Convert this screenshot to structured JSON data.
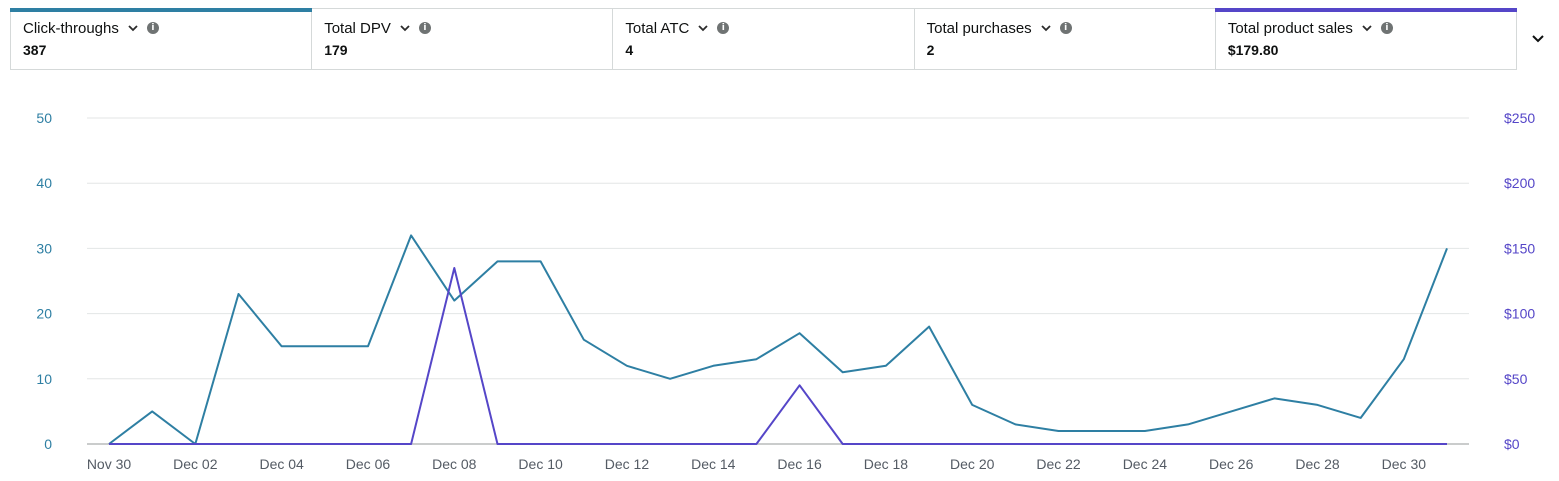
{
  "metrics": [
    {
      "label": "Click-throughs",
      "value": "387",
      "bar_color": "#2e7fa3"
    },
    {
      "label": "Total DPV",
      "value": "179",
      "bar_color": ""
    },
    {
      "label": "Total ATC",
      "value": "4",
      "bar_color": ""
    },
    {
      "label": "Total purchases",
      "value": "2",
      "bar_color": ""
    },
    {
      "label": "Total product sales",
      "value": "$179.80",
      "bar_color": "#5546c8"
    }
  ],
  "colors": {
    "left_axis": "#2e7fa3",
    "right_axis": "#5546c8"
  },
  "icons": {
    "metric_dropdown": "chevron-down-icon",
    "metric_info": "info-icon",
    "expand": "chevron-down-icon"
  },
  "chart_data": {
    "type": "line",
    "x": [
      "Nov 30",
      "Dec 01",
      "Dec 02",
      "Dec 03",
      "Dec 04",
      "Dec 05",
      "Dec 06",
      "Dec 07",
      "Dec 08",
      "Dec 09",
      "Dec 10",
      "Dec 11",
      "Dec 12",
      "Dec 13",
      "Dec 14",
      "Dec 15",
      "Dec 16",
      "Dec 17",
      "Dec 18",
      "Dec 19",
      "Dec 20",
      "Dec 21",
      "Dec 22",
      "Dec 23",
      "Dec 24",
      "Dec 25",
      "Dec 26",
      "Dec 27",
      "Dec 28",
      "Dec 29",
      "Dec 30",
      "Dec 31"
    ],
    "x_tick_labels": [
      "Nov 30",
      "Dec 02",
      "Dec 04",
      "Dec 06",
      "Dec 08",
      "Dec 10",
      "Dec 12",
      "Dec 14",
      "Dec 16",
      "Dec 18",
      "Dec 20",
      "Dec 22",
      "Dec 24",
      "Dec 26",
      "Dec 28",
      "Dec 30"
    ],
    "y_left": {
      "ticks": [
        "0",
        "10",
        "20",
        "30",
        "40",
        "50"
      ],
      "ylim": [
        0,
        50
      ]
    },
    "y_right": {
      "ticks": [
        "$0",
        "$50",
        "$100",
        "$150",
        "$200",
        "$250"
      ],
      "ylim": [
        0,
        250
      ]
    },
    "grid": true,
    "series": [
      {
        "axis": "left",
        "color": "#2e7fa3",
        "values": [
          0,
          5,
          0,
          23,
          15,
          15,
          15,
          32,
          22,
          28,
          28,
          16,
          12,
          10,
          12,
          13,
          17,
          11,
          12,
          18,
          6,
          3,
          2,
          2,
          2,
          3,
          5,
          7,
          6,
          4,
          13,
          30
        ]
      },
      {
        "axis": "right",
        "color": "#5546c8",
        "values": [
          0,
          0,
          0,
          0,
          0,
          0,
          0,
          0,
          135,
          0,
          0,
          0,
          0,
          0,
          0,
          0,
          45,
          0,
          0,
          0,
          0,
          0,
          0,
          0,
          0,
          0,
          0,
          0,
          0,
          0,
          0,
          0
        ]
      }
    ]
  }
}
